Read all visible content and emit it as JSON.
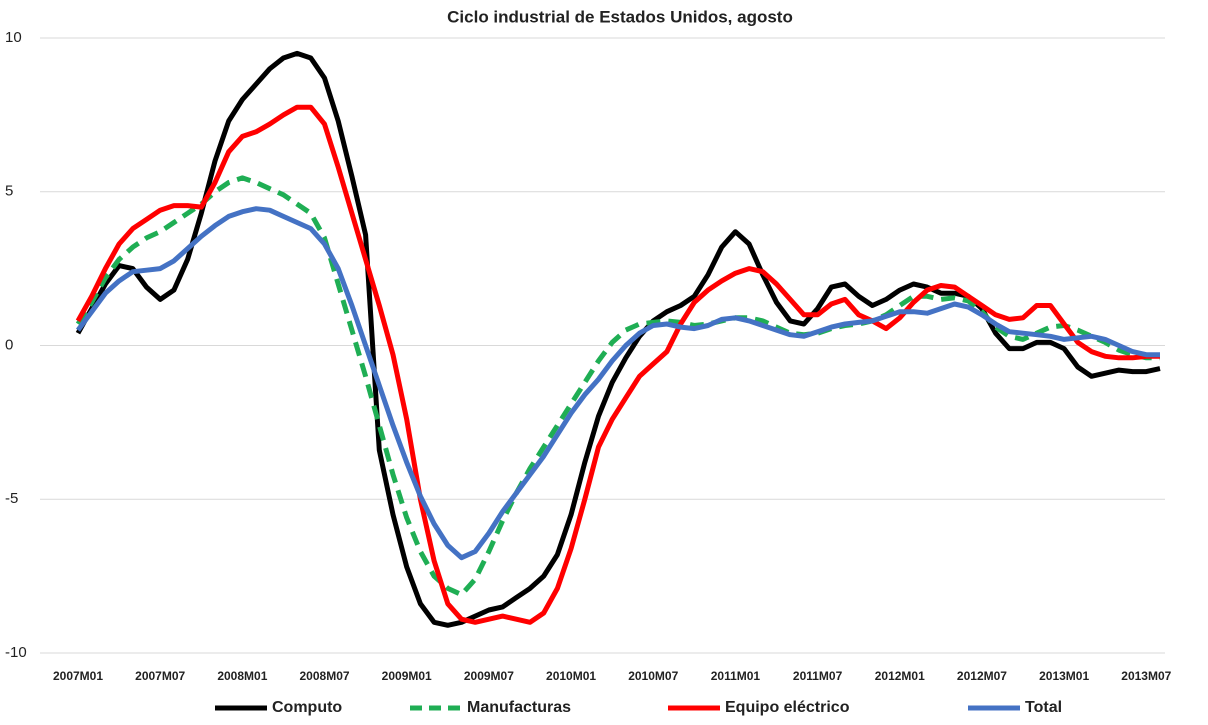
{
  "chart_data": {
    "type": "line",
    "title": "Ciclo industrial de Estados Unidos, agosto",
    "categories": [
      "2007M01",
      null,
      null,
      null,
      null,
      null,
      "2007M07",
      null,
      null,
      null,
      null,
      null,
      "2008M01",
      null,
      null,
      null,
      null,
      null,
      "2008M07",
      null,
      null,
      null,
      null,
      null,
      "2009M01",
      null,
      null,
      null,
      null,
      null,
      "2009M07",
      null,
      null,
      null,
      null,
      null,
      "2010M01",
      null,
      null,
      null,
      null,
      null,
      "2010M07",
      null,
      null,
      null,
      null,
      null,
      "2011M01",
      null,
      null,
      null,
      null,
      null,
      "2011M07",
      null,
      null,
      null,
      null,
      null,
      "2012M01",
      null,
      null,
      null,
      null,
      null,
      "2012M07",
      null,
      null,
      null,
      null,
      null,
      "2013M01",
      null,
      null,
      null,
      null,
      null,
      "2013M07",
      null
    ],
    "ylim": [
      -10,
      10
    ],
    "yticks": [
      -10,
      -5,
      0,
      5,
      10
    ],
    "grid": true,
    "legend": "bottom",
    "series": [
      {
        "name": "Computo",
        "color": "#000000",
        "dash": false,
        "values": [
          0.4,
          1.2,
          2.0,
          2.6,
          2.5,
          1.9,
          1.5,
          1.8,
          2.8,
          4.3,
          6.0,
          7.3,
          8.0,
          8.5,
          9.0,
          9.35,
          9.5,
          9.35,
          8.7,
          7.3,
          5.5,
          3.6,
          -3.4,
          -5.5,
          -7.2,
          -8.4,
          -9.0,
          -9.1,
          -9.0,
          -8.8,
          -8.6,
          -8.5,
          -8.2,
          -7.9,
          -7.5,
          -6.8,
          -5.5,
          -3.8,
          -2.3,
          -1.2,
          -0.4,
          0.3,
          0.8,
          1.1,
          1.3,
          1.6,
          2.3,
          3.2,
          3.7,
          3.3,
          2.3,
          1.4,
          0.8,
          0.7,
          1.2,
          1.9,
          2.0,
          1.6,
          1.3,
          1.5,
          1.8,
          2.0,
          1.9,
          1.7,
          1.7,
          1.6,
          1.2,
          0.4,
          -0.1,
          -0.1,
          0.1,
          0.1,
          -0.1,
          -0.7,
          -1.0,
          -0.9,
          -0.8,
          -0.85,
          -0.85,
          -0.75
        ]
      },
      {
        "name": "Manufacturas",
        "color": "#1fae54",
        "dash": true,
        "values": [
          0.7,
          1.4,
          2.2,
          2.8,
          3.2,
          3.5,
          3.7,
          4.0,
          4.3,
          4.6,
          5.0,
          5.3,
          5.45,
          5.3,
          5.1,
          4.9,
          4.6,
          4.3,
          3.5,
          2.0,
          0.5,
          -1.0,
          -2.6,
          -4.2,
          -5.6,
          -6.7,
          -7.5,
          -7.9,
          -8.1,
          -7.6,
          -6.7,
          -5.7,
          -4.8,
          -4.0,
          -3.3,
          -2.6,
          -1.9,
          -1.2,
          -0.5,
          0.1,
          0.5,
          0.7,
          0.75,
          0.8,
          0.75,
          0.65,
          0.7,
          0.8,
          0.9,
          0.9,
          0.8,
          0.6,
          0.4,
          0.35,
          0.4,
          0.55,
          0.65,
          0.7,
          0.8,
          1.0,
          1.3,
          1.6,
          1.6,
          1.5,
          1.55,
          1.45,
          1.1,
          0.6,
          0.3,
          0.2,
          0.4,
          0.6,
          0.65,
          0.5,
          0.3,
          0.1,
          -0.15,
          -0.3,
          -0.4,
          -0.4
        ]
      },
      {
        "name": "Equipo eléctrico",
        "color": "#ff0000",
        "dash": false,
        "values": [
          0.8,
          1.6,
          2.5,
          3.3,
          3.8,
          4.1,
          4.4,
          4.55,
          4.55,
          4.5,
          5.3,
          6.3,
          6.8,
          6.95,
          7.2,
          7.5,
          7.75,
          7.75,
          7.2,
          5.8,
          4.3,
          2.8,
          1.3,
          -0.3,
          -2.4,
          -5.0,
          -7.0,
          -8.4,
          -8.9,
          -9.0,
          -8.9,
          -8.8,
          -8.9,
          -9.0,
          -8.7,
          -7.9,
          -6.6,
          -5.0,
          -3.3,
          -2.4,
          -1.7,
          -1.0,
          -0.6,
          -0.2,
          0.7,
          1.4,
          1.8,
          2.1,
          2.35,
          2.5,
          2.4,
          2.0,
          1.5,
          1.0,
          1.0,
          1.35,
          1.5,
          1.0,
          0.8,
          0.55,
          0.9,
          1.4,
          1.8,
          1.95,
          1.9,
          1.6,
          1.3,
          1.0,
          0.85,
          0.9,
          1.3,
          1.3,
          0.7,
          0.1,
          -0.2,
          -0.35,
          -0.4,
          -0.4,
          -0.35,
          -0.35
        ]
      },
      {
        "name": "Total",
        "color": "#4472c4",
        "dash": false,
        "values": [
          0.5,
          1.1,
          1.7,
          2.1,
          2.4,
          2.45,
          2.5,
          2.75,
          3.15,
          3.55,
          3.9,
          4.2,
          4.35,
          4.45,
          4.4,
          4.2,
          4.0,
          3.8,
          3.3,
          2.5,
          1.3,
          0.0,
          -1.3,
          -2.6,
          -3.8,
          -4.9,
          -5.8,
          -6.5,
          -6.9,
          -6.7,
          -6.1,
          -5.4,
          -4.8,
          -4.2,
          -3.6,
          -2.9,
          -2.2,
          -1.6,
          -1.1,
          -0.5,
          0.0,
          0.4,
          0.65,
          0.7,
          0.6,
          0.55,
          0.65,
          0.85,
          0.9,
          0.8,
          0.65,
          0.5,
          0.35,
          0.3,
          0.45,
          0.6,
          0.7,
          0.75,
          0.8,
          0.95,
          1.1,
          1.1,
          1.05,
          1.2,
          1.35,
          1.25,
          1.0,
          0.7,
          0.45,
          0.4,
          0.35,
          0.3,
          0.2,
          0.25,
          0.3,
          0.2,
          0.0,
          -0.2,
          -0.3,
          -0.3
        ]
      }
    ]
  }
}
